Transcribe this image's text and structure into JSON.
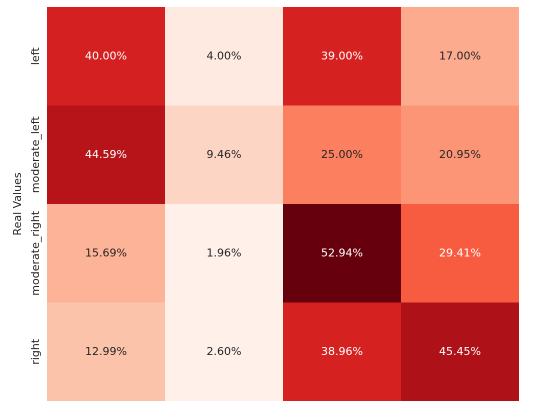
{
  "chart_data": {
    "type": "heatmap",
    "ylabel": "Real Values",
    "categories": [
      "left",
      "moderate_left",
      "moderate_right",
      "right"
    ],
    "values": [
      [
        40.0,
        4.0,
        39.0,
        17.0
      ],
      [
        44.59,
        9.46,
        25.0,
        20.95
      ],
      [
        15.69,
        1.96,
        52.94,
        29.41
      ],
      [
        12.99,
        2.6,
        38.96,
        45.45
      ]
    ],
    "value_labels": [
      [
        "40.00%",
        "4.00%",
        "39.00%",
        "17.00%"
      ],
      [
        "44.59%",
        "9.46%",
        "25.00%",
        "20.95%"
      ],
      [
        "15.69%",
        "1.96%",
        "52.94%",
        "29.41%"
      ],
      [
        "12.99%",
        "2.60%",
        "38.96%",
        "45.45%"
      ]
    ],
    "colors": [
      [
        "#d42020",
        "#feeae1",
        "#d52221",
        "#fcab8f"
      ],
      [
        "#b61419",
        "#fdd5c4",
        "#fc7f5f",
        "#fc9576"
      ],
      [
        "#fcb398",
        "#fff0e9",
        "#67000d",
        "#f75c41"
      ],
      [
        "#fcc3ab",
        "#fff1ea",
        "#d52221",
        "#ae1117"
      ]
    ]
  }
}
